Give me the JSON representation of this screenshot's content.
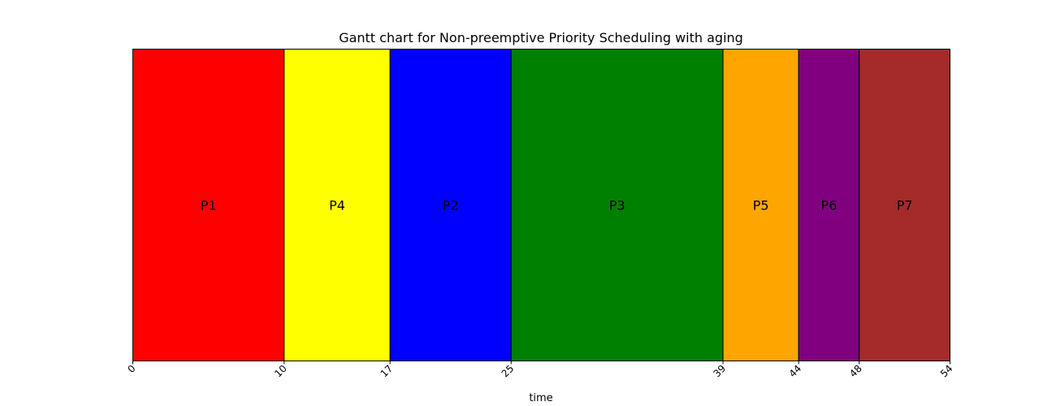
{
  "chart_data": {
    "type": "bar",
    "orientation": "horizontal-gantt",
    "title": "Gantt chart for Non-preemptive Priority Scheduling with aging",
    "xlabel": "time",
    "ylabel": "",
    "xlim": [
      0,
      54
    ],
    "xticks": [
      0,
      10,
      17,
      25,
      39,
      44,
      48,
      54
    ],
    "grid": false,
    "tasks": [
      {
        "label": "P1",
        "start": 0,
        "end": 10,
        "color": "#ff0000"
      },
      {
        "label": "P4",
        "start": 10,
        "end": 17,
        "color": "#ffff00"
      },
      {
        "label": "P2",
        "start": 17,
        "end": 25,
        "color": "#0000ff"
      },
      {
        "label": "P3",
        "start": 25,
        "end": 39,
        "color": "#008000"
      },
      {
        "label": "P5",
        "start": 39,
        "end": 44,
        "color": "#ffa500"
      },
      {
        "label": "P6",
        "start": 44,
        "end": 48,
        "color": "#800080"
      },
      {
        "label": "P7",
        "start": 48,
        "end": 54,
        "color": "#a52a2a"
      }
    ]
  }
}
